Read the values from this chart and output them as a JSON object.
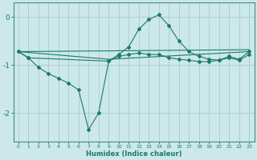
{
  "xlabel": "Humidex (Indice chaleur)",
  "ylabel": "",
  "bg_color": "#cce8e8",
  "grid_color": "#aacccc",
  "line_color": "#1a7a6e",
  "xlim": [
    -0.5,
    23.5
  ],
  "ylim": [
    -2.6,
    0.3
  ],
  "xticks": [
    0,
    1,
    2,
    3,
    4,
    5,
    6,
    7,
    8,
    9,
    10,
    11,
    12,
    13,
    14,
    15,
    16,
    17,
    18,
    19,
    20,
    21,
    22,
    23
  ],
  "yticks": [
    0,
    -1,
    -2
  ],
  "curves": [
    {
      "x": [
        0,
        23
      ],
      "y": [
        -0.72,
        -0.68
      ],
      "marker": false
    },
    {
      "x": [
        0,
        9,
        23
      ],
      "y": [
        -0.72,
        -0.88,
        -0.72
      ],
      "marker": false
    },
    {
      "x": [
        0,
        1,
        2,
        3,
        4,
        5,
        6,
        7,
        8,
        9,
        10,
        11,
        12,
        13,
        14,
        15,
        16,
        17,
        18,
        19,
        20,
        21,
        22,
        23
      ],
      "y": [
        -0.72,
        -0.85,
        -1.05,
        -1.18,
        -1.28,
        -1.38,
        -1.52,
        -2.35,
        -2.0,
        -0.92,
        -0.82,
        -0.78,
        -0.75,
        -0.78,
        -0.78,
        -0.85,
        -0.88,
        -0.9,
        -0.93,
        -0.93,
        -0.9,
        -0.85,
        -0.9,
        -0.78
      ],
      "marker": true
    },
    {
      "x": [
        0,
        1,
        9,
        10,
        11,
        12,
        13,
        14,
        15,
        16,
        17,
        18,
        19,
        20,
        21,
        22,
        23
      ],
      "y": [
        -0.72,
        -0.85,
        -0.92,
        -0.78,
        -0.62,
        -0.25,
        -0.05,
        0.05,
        -0.18,
        -0.5,
        -0.72,
        -0.82,
        -0.88,
        -0.9,
        -0.82,
        -0.88,
        -0.72
      ],
      "marker": true
    }
  ]
}
